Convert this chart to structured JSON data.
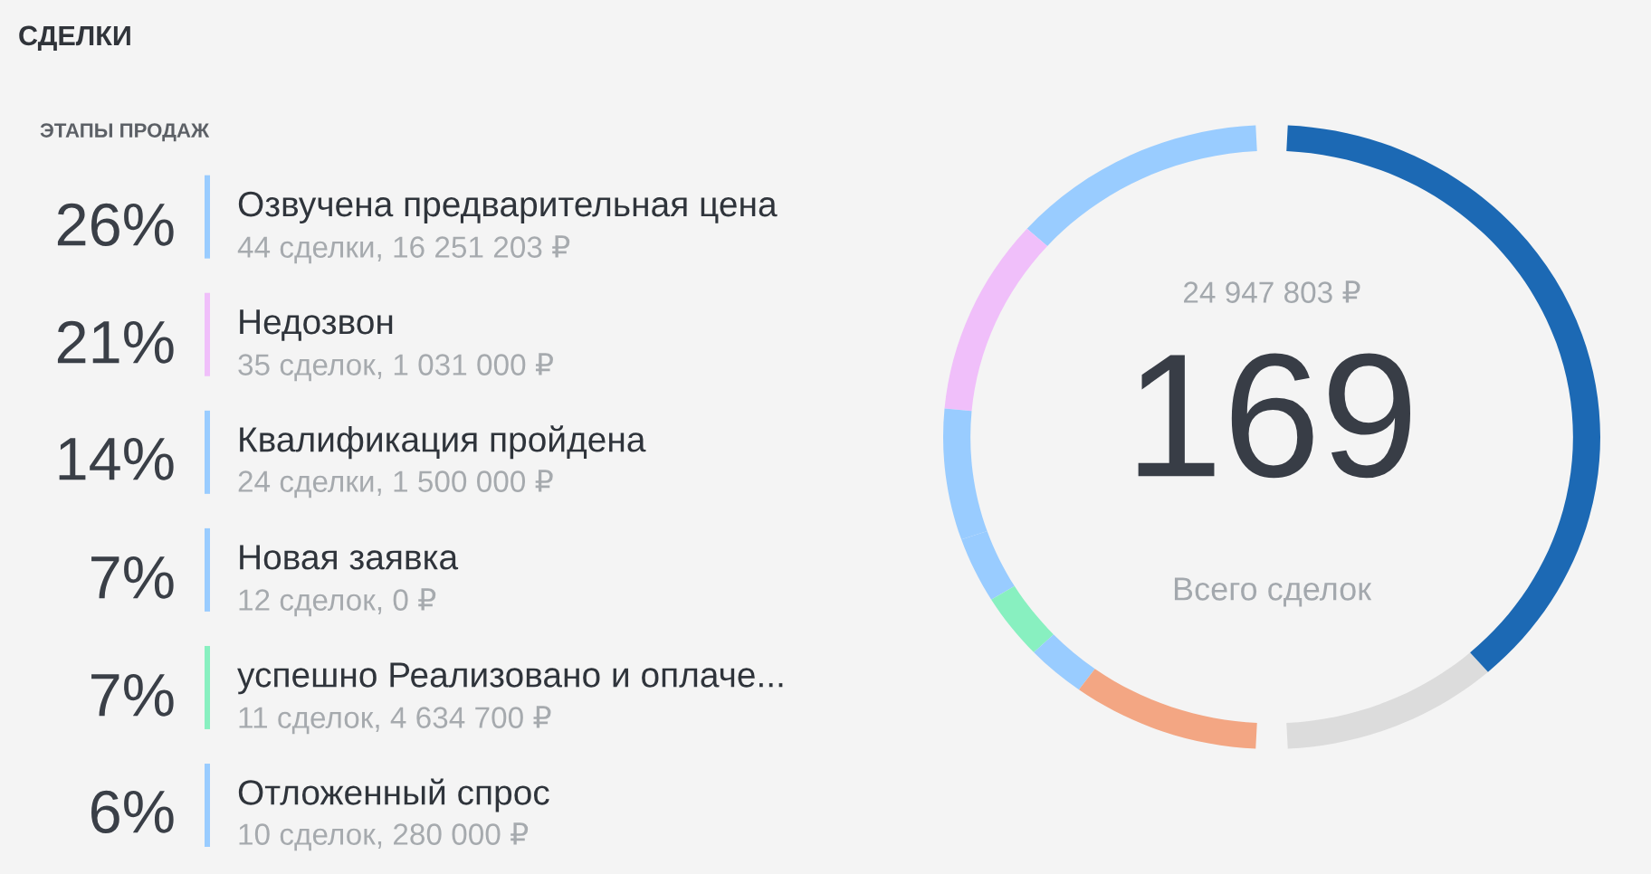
{
  "chart_data": {
    "type": "donut",
    "title": "СДЕЛКИ",
    "subtitle": "ЭТАПЫ ПРОДАЖ",
    "categories": [
      "Озвучена предварительная цена",
      "Недозвон",
      "Квалификация пройдена",
      "Новая заявка",
      "успешно Реализовано и оплаче...",
      "Отложенный спрос",
      null,
      null,
      null
    ],
    "values": [
      26,
      21,
      14,
      7,
      7,
      6,
      19,
      22,
      78
    ],
    "colors": [
      "#99ccff",
      "#f0bffa",
      "#99ccff",
      "#99ccff",
      "#88f0c0",
      "#99ccff",
      "#f3a683",
      "#dcdcdc",
      "#1c69b4"
    ],
    "value_labels": [
      "26%",
      "21%",
      "14%",
      "7%",
      "7%",
      "6%",
      null,
      null,
      null
    ],
    "annotations": [
      "44 сделки, 16 251 203 ₽",
      "35 сделок, 1 031 000 ₽",
      "24 сделки, 1 500 000 ₽",
      "12 сделок, 0 ₽",
      "11 сделок, 4 634 700 ₽",
      "10 сделок, 280 000 ₽",
      "24 947 803 ₽",
      "169",
      "Всего сделок"
    ],
    "legend": "left"
  }
}
